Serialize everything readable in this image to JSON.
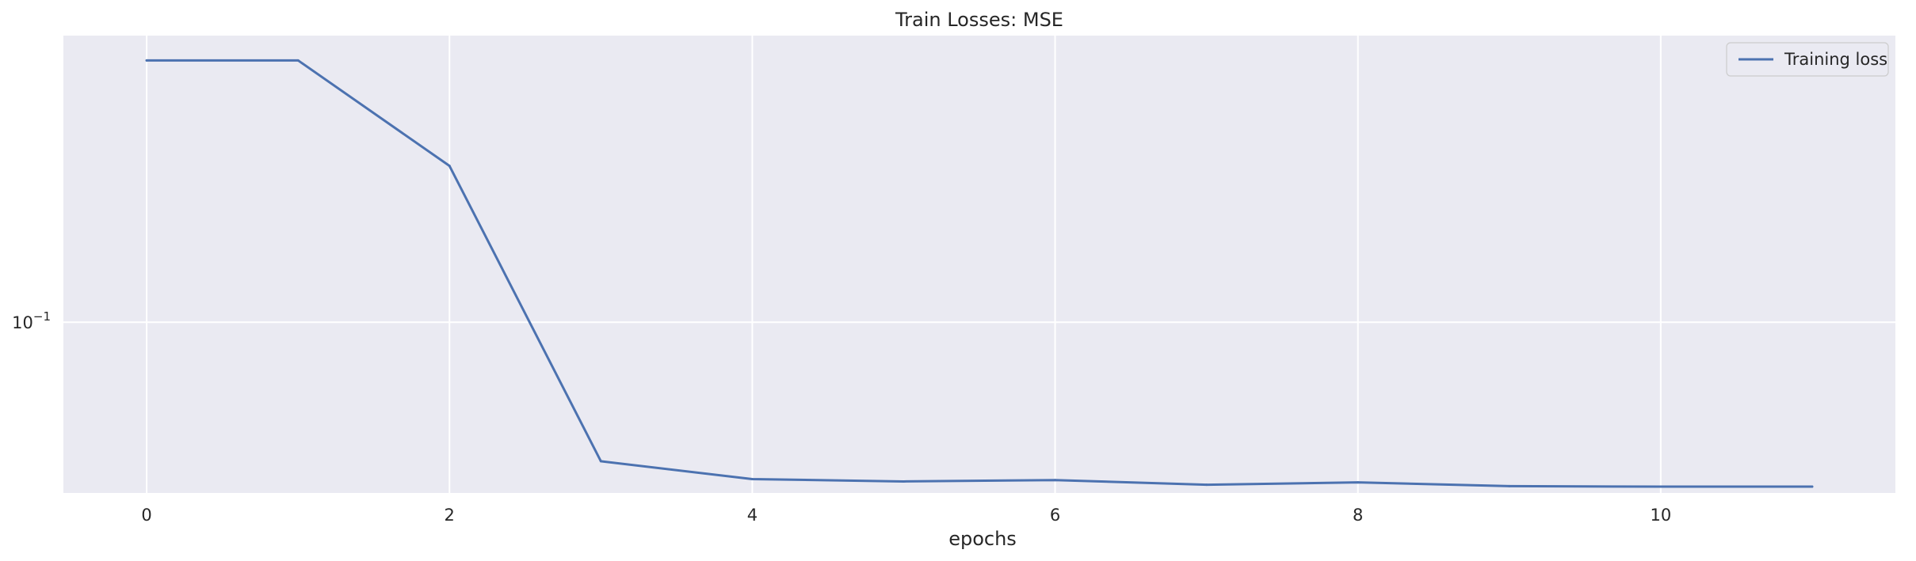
{
  "chart_data": {
    "type": "line",
    "title": "Train Losses:  MSE",
    "xlabel": "epochs",
    "ylabel": "",
    "yscale": "log",
    "xlim": [
      -0.55,
      11.55
    ],
    "ylim": [
      0.0496,
      0.3244
    ],
    "grid": true,
    "legend_position": "top-right",
    "x_ticks": [
      0,
      2,
      4,
      6,
      8,
      10
    ],
    "x_tick_labels": [
      "0",
      "2",
      "4",
      "6",
      "8",
      "10"
    ],
    "y_ticks": [
      0.1
    ],
    "y_tick_labels": [
      {
        "base": "10",
        "exp": "−1"
      }
    ],
    "series": [
      {
        "name": "Training loss",
        "color": "#4c72b0",
        "x": [
          0,
          1,
          2,
          3,
          4,
          5,
          6,
          7,
          8,
          9,
          10,
          11
        ],
        "y": [
          0.293,
          0.293,
          0.19,
          0.0565,
          0.0525,
          0.052,
          0.0523,
          0.0513,
          0.0518,
          0.051,
          0.0509,
          0.0509
        ]
      }
    ]
  },
  "colors": {
    "plot_background": "#eaeaf2",
    "grid": "#ffffff",
    "text": "#262626"
  }
}
